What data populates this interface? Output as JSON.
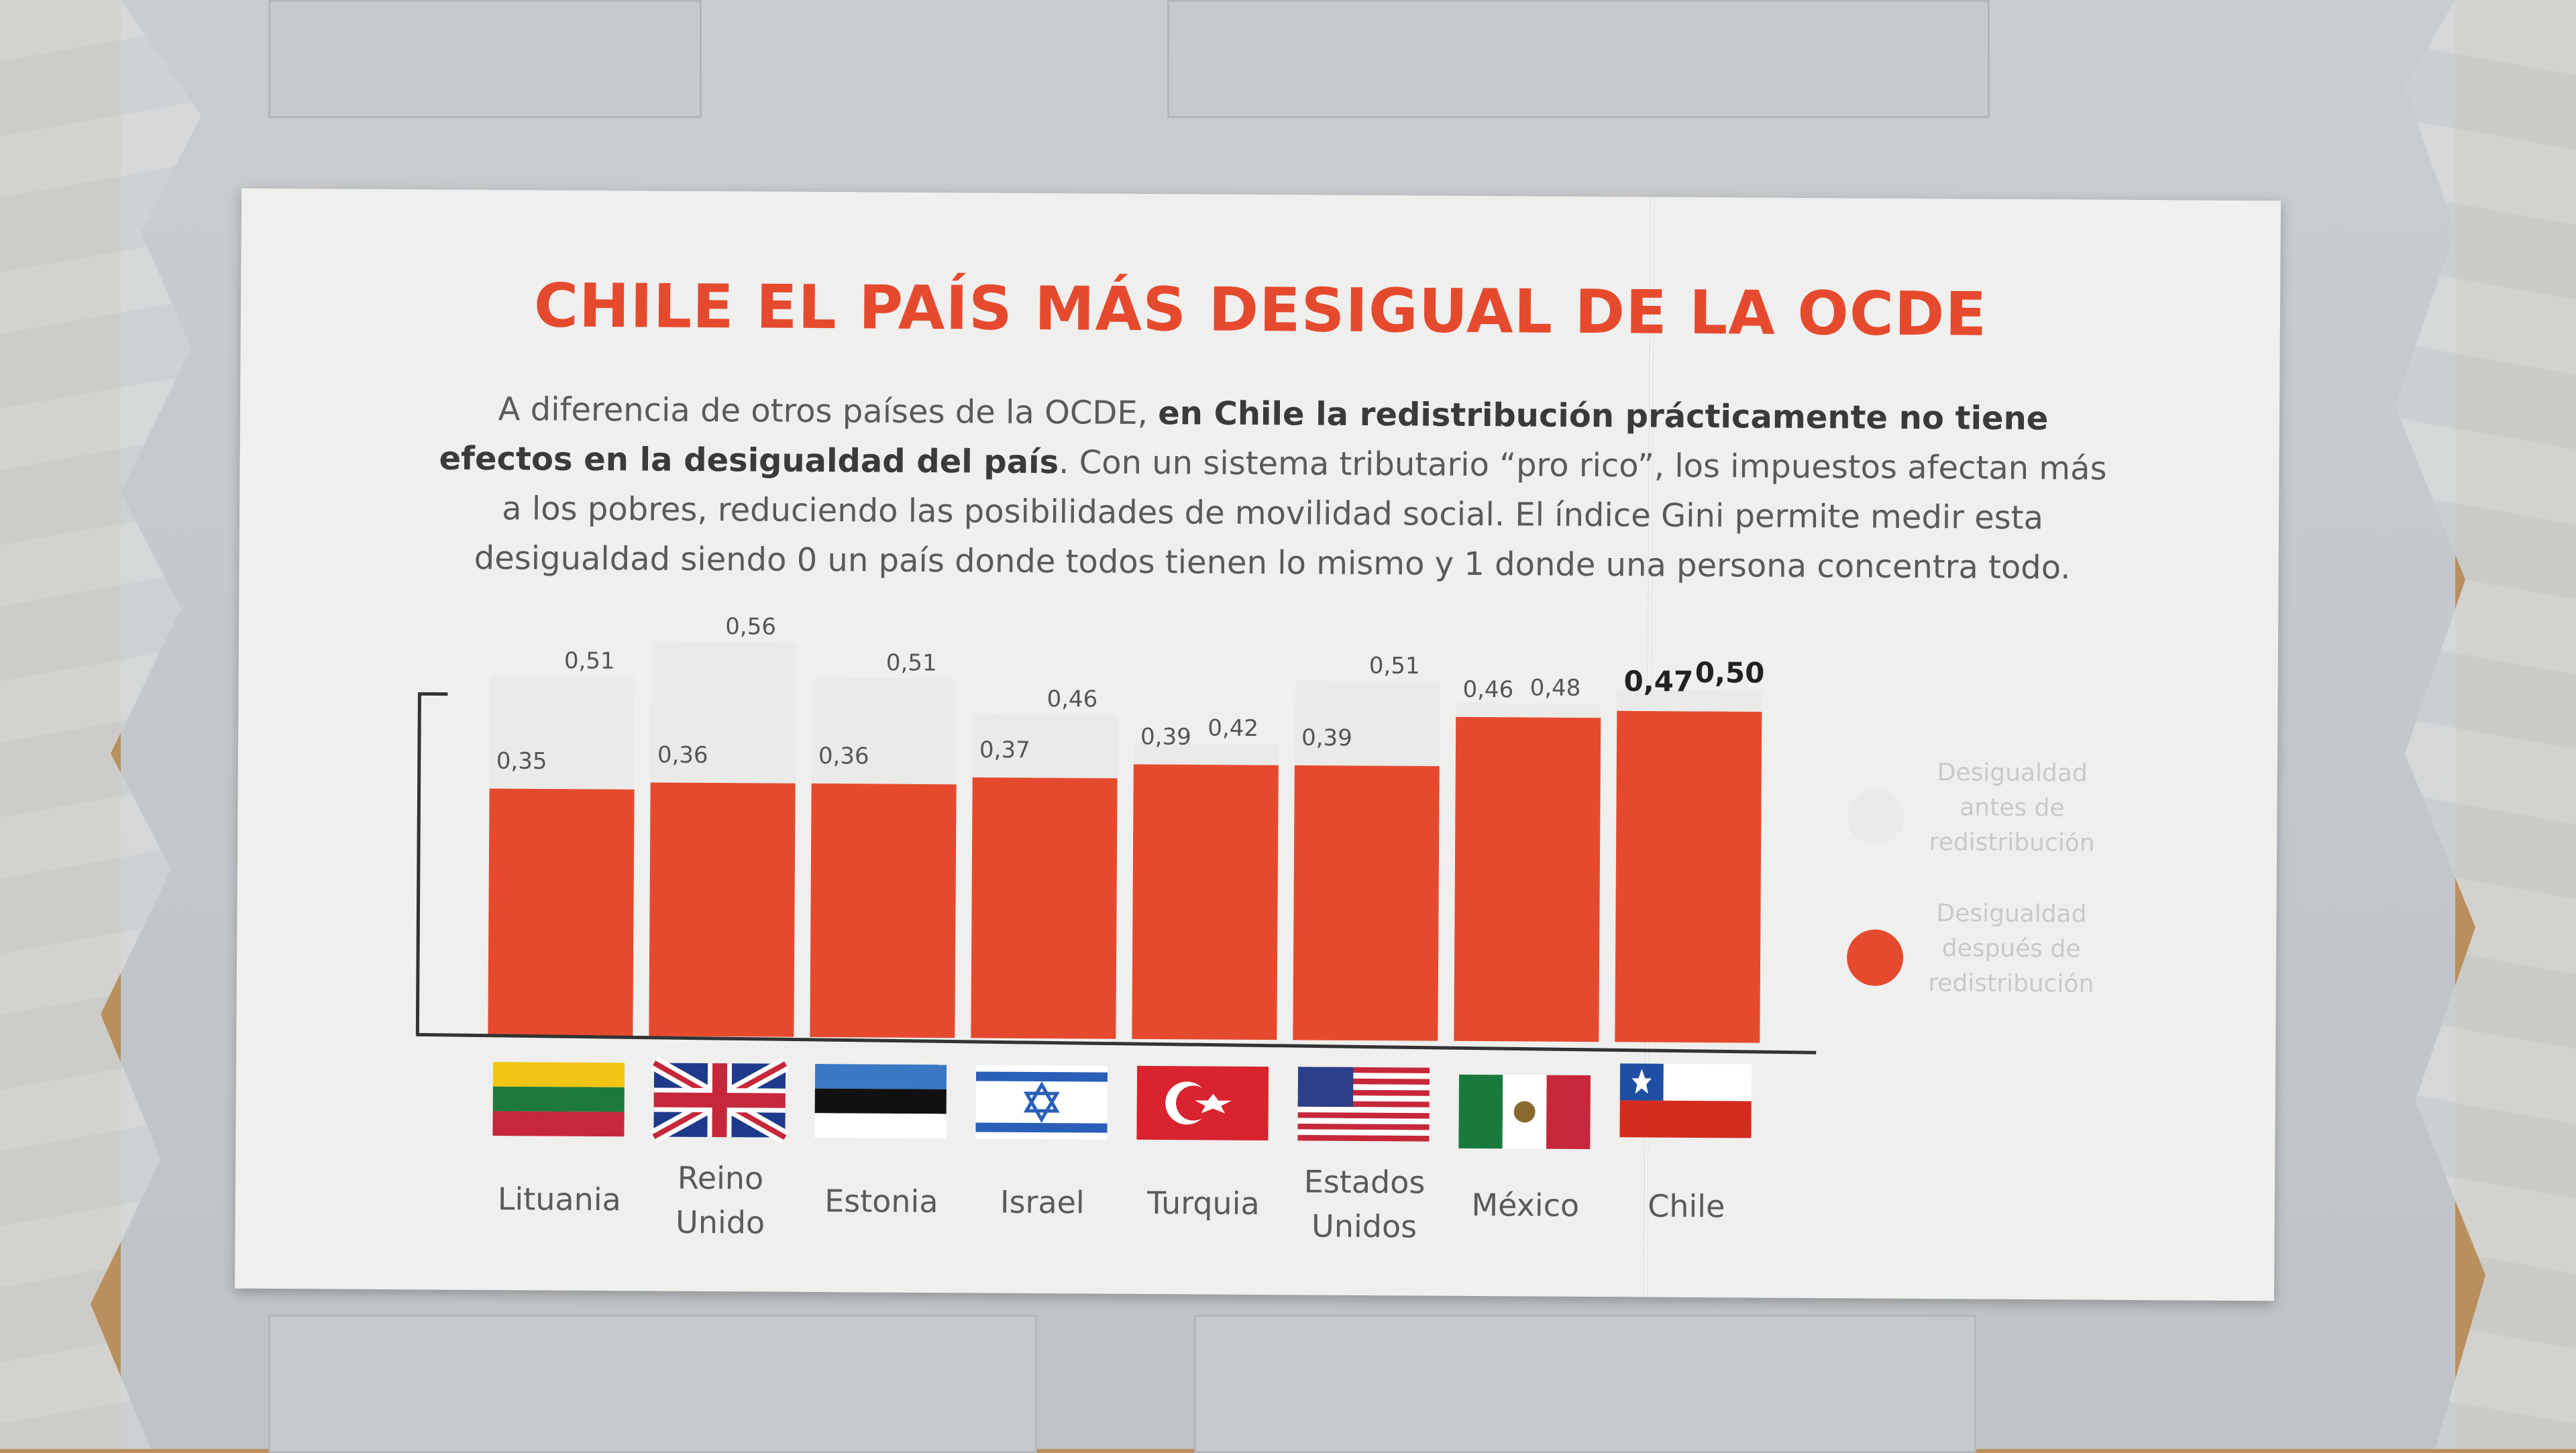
{
  "poster": {
    "title": "CHILE EL PAÍS MÁS DESIGUAL DE LA OCDE",
    "subtitle": {
      "part1": "A diferencia de otros países de la OCDE, ",
      "bold": "en Chile la redistribución prácticamente no tiene efectos en la desigualdad del país",
      "part2": ". Con un sistema tributario “pro rico”, los impuestos afectan más a los pobres, reduciendo las posibilidades de movilidad social. El índice Gini permite medir esta desigualdad siendo 0 un país donde todos tienen lo mismo y 1 donde una persona concentra todo."
    }
  },
  "chart_data": {
    "type": "bar",
    "categories": [
      "Lituania",
      "Reino Unido",
      "Estonia",
      "Israel",
      "Turquia",
      "Estados Unidos",
      "México",
      "Chile"
    ],
    "category_lines": [
      [
        "Lituania"
      ],
      [
        "Reino",
        "Unido"
      ],
      [
        "Estonia"
      ],
      [
        "Israel"
      ],
      [
        "Turquia"
      ],
      [
        "Estados",
        "Unidos"
      ],
      [
        "México"
      ],
      [
        "Chile"
      ]
    ],
    "series": [
      {
        "name": "Desigualdad antes de redistribución",
        "values": [
          0.51,
          0.56,
          0.51,
          0.46,
          0.42,
          0.51,
          0.48,
          0.5
        ],
        "labels": [
          "0,51",
          "0,56",
          "0,51",
          "0,46",
          "0,42",
          "0,51",
          "0,48",
          "0,50"
        ],
        "color": "#e6e6e6"
      },
      {
        "name": "Desigualdad después de redistribución",
        "values": [
          0.35,
          0.36,
          0.36,
          0.37,
          0.39,
          0.39,
          0.46,
          0.47
        ],
        "labels": [
          "0,35",
          "0,36",
          "0,36",
          "0,37",
          "0,39",
          "0,39",
          "0,46",
          "0,47"
        ],
        "color": "#e64a2e"
      }
    ],
    "highlight_category": "Chile",
    "flags": [
      "lithuania-flag",
      "uk-flag",
      "estonia-flag",
      "israel-flag",
      "turkey-flag",
      "usa-flag",
      "mexico-flag",
      "chile-flag"
    ]
  },
  "legend": [
    {
      "lines": [
        "Desigualdad",
        "antes de",
        "redistribución"
      ],
      "color": "#e6e6e6"
    },
    {
      "lines": [
        "Desigualdad",
        "después de",
        "redistribución"
      ],
      "color": "#e64a2e"
    }
  ]
}
